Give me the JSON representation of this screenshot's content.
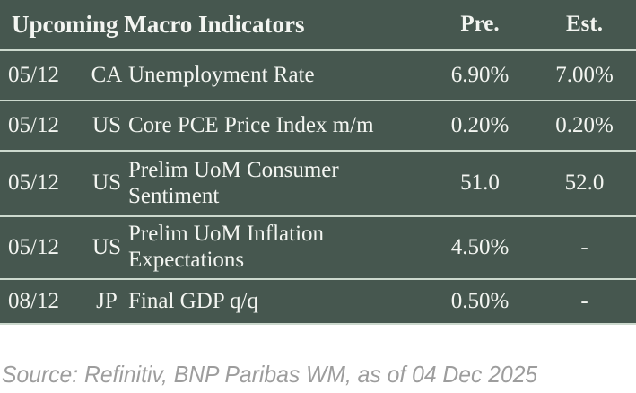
{
  "chart_data": {
    "type": "table",
    "title": "Upcoming Macro Indicators",
    "header": {
      "pre": "Pre.",
      "est": "Est."
    },
    "rows": [
      {
        "date": "05/12",
        "country": "CA",
        "indicator": "Unemployment Rate",
        "pre": "6.90%",
        "est": "7.00%"
      },
      {
        "date": "05/12",
        "country": "US",
        "indicator": "Core PCE Price Index m/m",
        "pre": "0.20%",
        "est": "0.20%"
      },
      {
        "date": "05/12",
        "country": "US",
        "indicator": "Prelim UoM Consumer Sentiment",
        "pre": "51.0",
        "est": "52.0"
      },
      {
        "date": "05/12",
        "country": "US",
        "indicator": "Prelim UoM Inflation Expectations",
        "pre": "4.50%",
        "est": "-"
      },
      {
        "date": "08/12",
        "country": "JP",
        "indicator": "Final GDP q/q",
        "pre": "0.50%",
        "est": "-"
      }
    ]
  },
  "footer": {
    "source_note": "Source: Refinitiv, BNP Paribas WM, as of 04 Dec 2025"
  },
  "colors": {
    "table_bg": "#46574f",
    "divider": "#ccd9ce",
    "table_text": "#f3f5f1",
    "source_text": "#9d9d9d",
    "page_bg": "#ffffff"
  }
}
